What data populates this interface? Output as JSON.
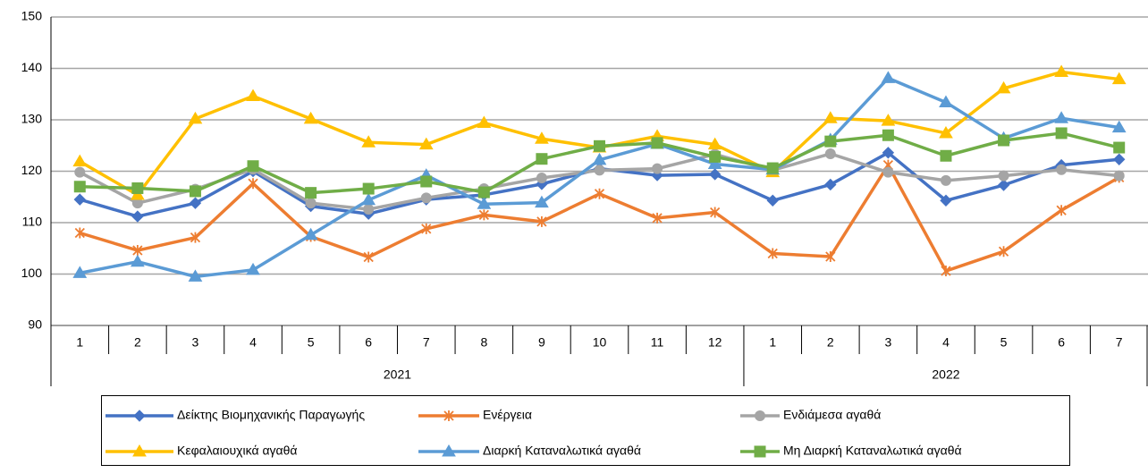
{
  "chart_data": {
    "type": "line",
    "groups": [
      {
        "name": "2021",
        "categories": [
          "1",
          "2",
          "3",
          "4",
          "5",
          "6",
          "7",
          "8",
          "9",
          "10",
          "11",
          "12"
        ]
      },
      {
        "name": "2022",
        "categories": [
          "1",
          "2",
          "3",
          "4",
          "5",
          "6",
          "7"
        ]
      }
    ],
    "ylim": [
      90,
      150
    ],
    "yticks": [
      90,
      100,
      110,
      120,
      130,
      140,
      150
    ],
    "grid": true,
    "series": [
      {
        "name": "Δείκτης Βιομηχανικής Παραγωγής",
        "color": "#4472c4",
        "marker": "diamond",
        "values": [
          114.5,
          111.2,
          113.8,
          120,
          113.2,
          111.7,
          114.5,
          115.4,
          117.5,
          120.5,
          119.2,
          119.4,
          114.3,
          117.4,
          123.6,
          114.3,
          117.3,
          121.2,
          122.3
        ]
      },
      {
        "name": "Ενέργεια",
        "color": "#ed7d31",
        "marker": "star",
        "values": [
          108,
          104.6,
          107.1,
          117.6,
          107.3,
          103.3,
          108.8,
          111.5,
          110.2,
          115.6,
          110.9,
          112,
          104,
          103.4,
          121.2,
          100.6,
          104.4,
          112.4,
          118.8
        ]
      },
      {
        "name": "Ενδιάμεσα αγαθά",
        "color": "#a5a5a5",
        "marker": "circle",
        "values": [
          119.8,
          113.8,
          116.5,
          120.4,
          113.8,
          112.6,
          114.8,
          116.6,
          118.7,
          120.2,
          120.5,
          123.3,
          120.2,
          123.4,
          119.8,
          118.2,
          119.1,
          120.3,
          119.1
        ]
      },
      {
        "name": "Κεφαλαιουχικά αγαθά",
        "color": "#ffc000",
        "marker": "triangle",
        "values": [
          121.9,
          115.4,
          130.2,
          134.6,
          130.2,
          125.6,
          125.2,
          129.4,
          126.3,
          124.6,
          126.8,
          125.2,
          119.8,
          130.3,
          129.8,
          127.4,
          136.1,
          139.3,
          137.9
        ]
      },
      {
        "name": "Διαρκή Καταναλωτικά αγαθά",
        "color": "#5b9bd5",
        "marker": "triangle",
        "values": [
          100.2,
          102.4,
          99.5,
          100.8,
          107.6,
          114.4,
          119.2,
          113.6,
          113.9,
          122.2,
          125.3,
          121.4,
          120.3,
          126.1,
          138.1,
          133.4,
          126.4,
          130.3,
          128.5
        ]
      },
      {
        "name": "Μη Διαρκή Καταναλωτικά αγαθά",
        "color": "#70ad47",
        "marker": "square",
        "values": [
          117,
          116.7,
          116.1,
          121,
          115.8,
          116.6,
          118,
          115.9,
          122.4,
          124.9,
          125.5,
          122.8,
          120.6,
          125.8,
          127,
          123,
          126,
          127.4,
          124.6
        ]
      }
    ]
  }
}
